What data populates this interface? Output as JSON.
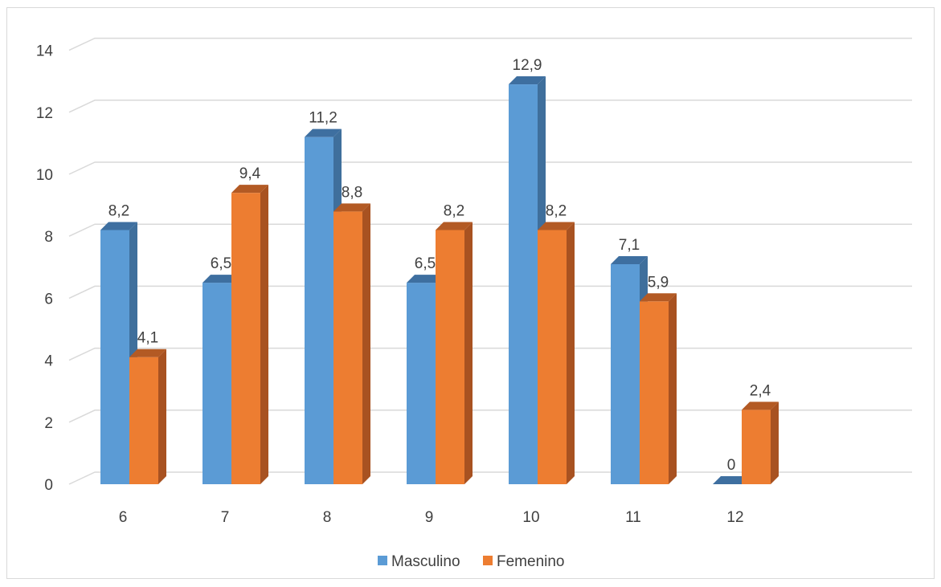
{
  "chart_data": {
    "type": "bar",
    "style": "3d-clustered-column",
    "categories": [
      "6",
      "7",
      "8",
      "9",
      "10",
      "11",
      "12"
    ],
    "series": [
      {
        "name": "Masculino",
        "values": [
          8.2,
          6.5,
          11.2,
          6.5,
          12.9,
          7.1,
          0
        ],
        "labels": [
          "8,2",
          "6,5",
          "11,2",
          "6,5",
          "12,9",
          "7,1",
          "0"
        ]
      },
      {
        "name": "Femenino",
        "values": [
          4.1,
          9.4,
          8.8,
          8.2,
          8.2,
          5.9,
          2.4
        ],
        "labels": [
          "4,1",
          "9,4",
          "8,8",
          "8,2",
          "8,2",
          "5,9",
          "2,4"
        ]
      }
    ],
    "yticks": [
      "0",
      "2",
      "4",
      "6",
      "8",
      "10",
      "12",
      "14"
    ],
    "ylim": [
      0,
      14
    ],
    "grid": true,
    "legend_position": "bottom",
    "colors": {
      "Masculino": {
        "front": "#5b9bd5",
        "side": "#3f6f9c",
        "top": "#3e6fa0"
      },
      "Femenino": {
        "front": "#ed7d31",
        "side": "#a85221",
        "top": "#b35a24"
      },
      "grid": "#d9d9d9",
      "text": "#404040"
    }
  }
}
